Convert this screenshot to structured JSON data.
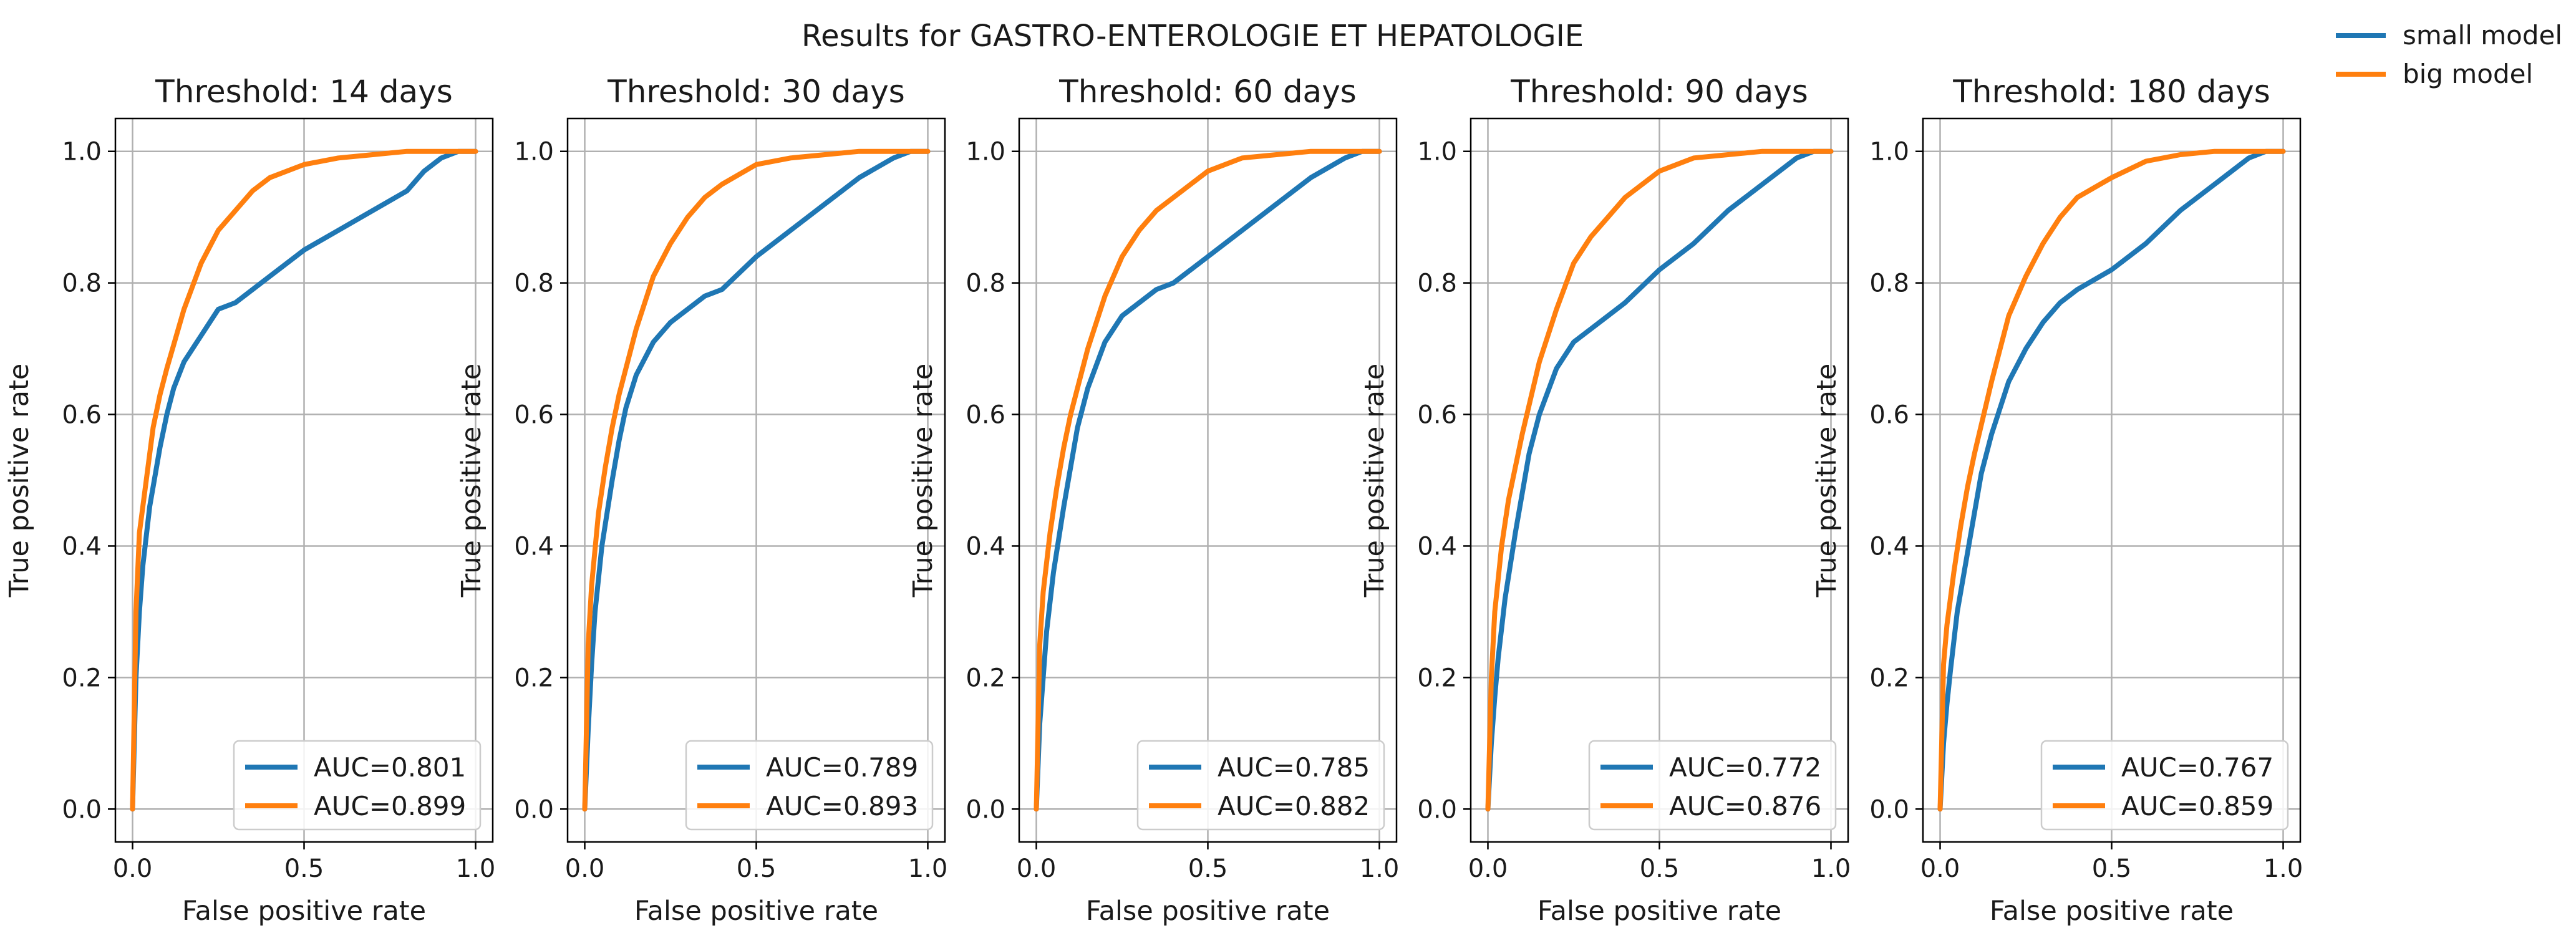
{
  "suptitle": "Results for GASTRO-ENTEROLOGIE ET HEPATOLOGIE",
  "figure_legend": {
    "entries": [
      "small model",
      "big model"
    ],
    "placement": "top-right"
  },
  "colors": {
    "small": "#1f77b4",
    "big": "#ff7f0e",
    "grid": "#b0b0b0"
  },
  "chart_data": [
    {
      "type": "line",
      "title": "Threshold: 14 days",
      "xlabel": "False positive rate",
      "ylabel": "True positive rate",
      "xlim": [
        -0.05,
        1.05
      ],
      "ylim": [
        -0.05,
        1.05
      ],
      "xticks": [
        "0.0",
        "0.5",
        "1.0"
      ],
      "yticks": [
        "0.0",
        "0.2",
        "0.4",
        "0.6",
        "0.8",
        "1.0"
      ],
      "grid": true,
      "legend_placement": "lower-right",
      "series": [
        {
          "name": "AUC=0.801",
          "x": [
            0,
            0.01,
            0.02,
            0.03,
            0.05,
            0.08,
            0.1,
            0.12,
            0.15,
            0.2,
            0.25,
            0.3,
            0.35,
            0.4,
            0.5,
            0.6,
            0.7,
            0.8,
            0.85,
            0.9,
            0.95,
            1.0
          ],
          "y": [
            0,
            0.2,
            0.3,
            0.37,
            0.46,
            0.55,
            0.6,
            0.64,
            0.68,
            0.72,
            0.76,
            0.77,
            0.79,
            0.81,
            0.85,
            0.88,
            0.91,
            0.94,
            0.97,
            0.99,
            1.0,
            1.0
          ]
        },
        {
          "name": "AUC=0.899",
          "x": [
            0,
            0.01,
            0.02,
            0.04,
            0.06,
            0.08,
            0.1,
            0.15,
            0.2,
            0.25,
            0.3,
            0.35,
            0.4,
            0.5,
            0.6,
            0.7,
            0.8,
            0.9,
            1.0
          ],
          "y": [
            0,
            0.3,
            0.42,
            0.5,
            0.58,
            0.63,
            0.67,
            0.76,
            0.83,
            0.88,
            0.91,
            0.94,
            0.96,
            0.98,
            0.99,
            0.995,
            1.0,
            1.0,
            1.0
          ]
        }
      ]
    },
    {
      "type": "line",
      "title": "Threshold: 30 days",
      "xlabel": "False positive rate",
      "ylabel": "True positive rate",
      "xlim": [
        -0.05,
        1.05
      ],
      "ylim": [
        -0.05,
        1.05
      ],
      "xticks": [
        "0.0",
        "0.5",
        "1.0"
      ],
      "yticks": [
        "0.0",
        "0.2",
        "0.4",
        "0.6",
        "0.8",
        "1.0"
      ],
      "grid": true,
      "legend_placement": "lower-right",
      "series": [
        {
          "name": "AUC=0.789",
          "x": [
            0,
            0.01,
            0.02,
            0.03,
            0.05,
            0.08,
            0.1,
            0.12,
            0.15,
            0.2,
            0.25,
            0.3,
            0.35,
            0.4,
            0.5,
            0.6,
            0.7,
            0.8,
            0.9,
            0.95,
            1.0
          ],
          "y": [
            0,
            0.12,
            0.22,
            0.3,
            0.4,
            0.5,
            0.56,
            0.61,
            0.66,
            0.71,
            0.74,
            0.76,
            0.78,
            0.79,
            0.84,
            0.88,
            0.92,
            0.96,
            0.99,
            1.0,
            1.0
          ]
        },
        {
          "name": "AUC=0.893",
          "x": [
            0,
            0.01,
            0.02,
            0.04,
            0.06,
            0.08,
            0.1,
            0.15,
            0.2,
            0.25,
            0.3,
            0.35,
            0.4,
            0.5,
            0.6,
            0.7,
            0.8,
            0.9,
            1.0
          ],
          "y": [
            0,
            0.25,
            0.34,
            0.45,
            0.52,
            0.58,
            0.63,
            0.73,
            0.81,
            0.86,
            0.9,
            0.93,
            0.95,
            0.98,
            0.99,
            0.995,
            1.0,
            1.0,
            1.0
          ]
        }
      ]
    },
    {
      "type": "line",
      "title": "Threshold: 60 days",
      "xlabel": "False positive rate",
      "ylabel": "True positive rate",
      "xlim": [
        -0.05,
        1.05
      ],
      "ylim": [
        -0.05,
        1.05
      ],
      "xticks": [
        "0.0",
        "0.5",
        "1.0"
      ],
      "yticks": [
        "0.0",
        "0.2",
        "0.4",
        "0.6",
        "0.8",
        "1.0"
      ],
      "grid": true,
      "legend_placement": "lower-right",
      "series": [
        {
          "name": "AUC=0.785",
          "x": [
            0,
            0.01,
            0.02,
            0.03,
            0.05,
            0.08,
            0.1,
            0.12,
            0.15,
            0.2,
            0.25,
            0.3,
            0.35,
            0.4,
            0.5,
            0.6,
            0.7,
            0.8,
            0.9,
            0.95,
            1.0
          ],
          "y": [
            0,
            0.13,
            0.2,
            0.27,
            0.36,
            0.46,
            0.52,
            0.58,
            0.64,
            0.71,
            0.75,
            0.77,
            0.79,
            0.8,
            0.84,
            0.88,
            0.92,
            0.96,
            0.99,
            1.0,
            1.0
          ]
        },
        {
          "name": "AUC=0.882",
          "x": [
            0,
            0.01,
            0.02,
            0.04,
            0.06,
            0.08,
            0.1,
            0.15,
            0.2,
            0.25,
            0.3,
            0.35,
            0.4,
            0.5,
            0.6,
            0.7,
            0.8,
            0.9,
            1.0
          ],
          "y": [
            0,
            0.25,
            0.33,
            0.42,
            0.49,
            0.55,
            0.6,
            0.7,
            0.78,
            0.84,
            0.88,
            0.91,
            0.93,
            0.97,
            0.99,
            0.995,
            1.0,
            1.0,
            1.0
          ]
        }
      ]
    },
    {
      "type": "line",
      "title": "Threshold: 90 days",
      "xlabel": "False positive rate",
      "ylabel": "True positive rate",
      "xlim": [
        -0.05,
        1.05
      ],
      "ylim": [
        -0.05,
        1.05
      ],
      "xticks": [
        "0.0",
        "0.5",
        "1.0"
      ],
      "yticks": [
        "0.0",
        "0.2",
        "0.4",
        "0.6",
        "0.8",
        "1.0"
      ],
      "grid": true,
      "legend_placement": "lower-right",
      "series": [
        {
          "name": "AUC=0.772",
          "x": [
            0,
            0.01,
            0.02,
            0.03,
            0.05,
            0.08,
            0.1,
            0.12,
            0.15,
            0.2,
            0.25,
            0.3,
            0.35,
            0.4,
            0.5,
            0.6,
            0.7,
            0.8,
            0.9,
            0.95,
            1.0
          ],
          "y": [
            0,
            0.1,
            0.17,
            0.23,
            0.32,
            0.42,
            0.48,
            0.54,
            0.6,
            0.67,
            0.71,
            0.73,
            0.75,
            0.77,
            0.82,
            0.86,
            0.91,
            0.95,
            0.99,
            1.0,
            1.0
          ]
        },
        {
          "name": "AUC=0.876",
          "x": [
            0,
            0.01,
            0.02,
            0.04,
            0.06,
            0.08,
            0.1,
            0.15,
            0.2,
            0.25,
            0.3,
            0.35,
            0.4,
            0.5,
            0.6,
            0.7,
            0.8,
            0.9,
            1.0
          ],
          "y": [
            0,
            0.2,
            0.3,
            0.4,
            0.47,
            0.52,
            0.57,
            0.68,
            0.76,
            0.83,
            0.87,
            0.9,
            0.93,
            0.97,
            0.99,
            0.995,
            1.0,
            1.0,
            1.0
          ]
        }
      ]
    },
    {
      "type": "line",
      "title": "Threshold: 180 days",
      "xlabel": "False positive rate",
      "ylabel": "True positive rate",
      "xlim": [
        -0.05,
        1.05
      ],
      "ylim": [
        -0.05,
        1.05
      ],
      "xticks": [
        "0.0",
        "0.5",
        "1.0"
      ],
      "yticks": [
        "0.0",
        "0.2",
        "0.4",
        "0.6",
        "0.8",
        "1.0"
      ],
      "grid": true,
      "legend_placement": "lower-right",
      "series": [
        {
          "name": "AUC=0.767",
          "x": [
            0,
            0.01,
            0.02,
            0.03,
            0.05,
            0.08,
            0.1,
            0.12,
            0.15,
            0.2,
            0.25,
            0.3,
            0.35,
            0.4,
            0.5,
            0.6,
            0.7,
            0.8,
            0.9,
            0.95,
            1.0
          ],
          "y": [
            0,
            0.1,
            0.16,
            0.21,
            0.3,
            0.39,
            0.45,
            0.51,
            0.57,
            0.65,
            0.7,
            0.74,
            0.77,
            0.79,
            0.82,
            0.86,
            0.91,
            0.95,
            0.99,
            1.0,
            1.0
          ]
        },
        {
          "name": "AUC=0.859",
          "x": [
            0,
            0.01,
            0.02,
            0.04,
            0.06,
            0.08,
            0.1,
            0.15,
            0.2,
            0.25,
            0.3,
            0.35,
            0.4,
            0.5,
            0.6,
            0.7,
            0.8,
            0.9,
            1.0
          ],
          "y": [
            0,
            0.22,
            0.28,
            0.36,
            0.43,
            0.49,
            0.54,
            0.65,
            0.75,
            0.81,
            0.86,
            0.9,
            0.93,
            0.96,
            0.985,
            0.995,
            1.0,
            1.0,
            1.0
          ]
        }
      ]
    }
  ]
}
